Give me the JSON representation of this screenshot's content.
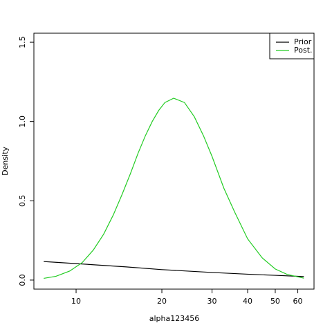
{
  "chart_data": {
    "type": "line",
    "x_label": "alpha123456",
    "y_label": "Density",
    "x_log": true,
    "xlim": [
      7.11,
      68.4
    ],
    "ylim": [
      -0.057,
      1.557
    ],
    "xticks": [
      10,
      20,
      30,
      40,
      50,
      60
    ],
    "yticks": [
      {
        "value": 0,
        "label": "0.0"
      },
      {
        "value": 0.5,
        "label": "0.5"
      },
      {
        "value": 1,
        "label": "1.0"
      },
      {
        "value": 1.5,
        "label": "1.5"
      }
    ],
    "legend": "top-right",
    "series": [
      {
        "name": "Prior",
        "color": "#000000",
        "x": [
          7.7,
          10,
          15,
          20,
          30,
          40,
          50,
          63
        ],
        "values": [
          0.117,
          0.104,
          0.083,
          0.066,
          0.048,
          0.037,
          0.03,
          0.022
        ]
      },
      {
        "name": "Post.",
        "color": "#22cc22",
        "x": [
          7.7,
          8.5,
          9.5,
          10.5,
          11.5,
          12.5,
          13.5,
          14.5,
          15.5,
          16.5,
          17.5,
          18.5,
          19.5,
          20.5,
          22,
          24,
          26,
          28,
          30,
          33,
          36,
          40,
          45,
          50,
          55,
          63
        ],
        "values": [
          0.011,
          0.024,
          0.057,
          0.11,
          0.19,
          0.29,
          0.41,
          0.54,
          0.67,
          0.8,
          0.91,
          1.0,
          1.07,
          1.12,
          1.147,
          1.12,
          1.03,
          0.91,
          0.78,
          0.58,
          0.43,
          0.26,
          0.14,
          0.07,
          0.036,
          0.012
        ]
      }
    ]
  }
}
